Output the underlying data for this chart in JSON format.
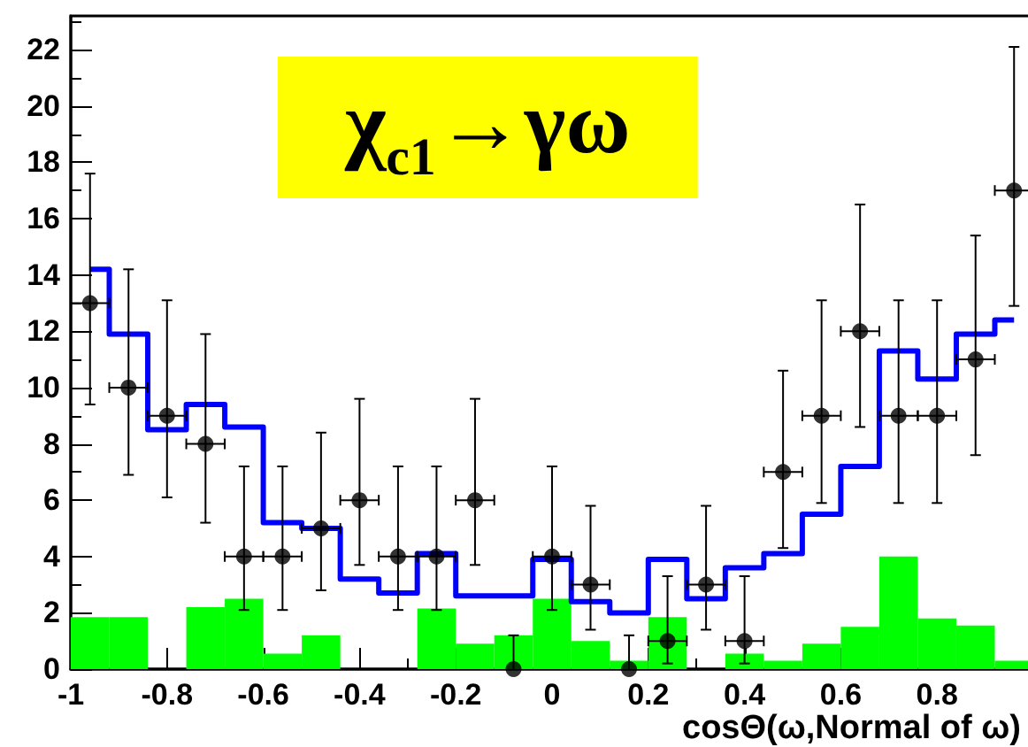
{
  "chart_data": {
    "type": "histogram",
    "title": "χ$_{c1}$→γω",
    "xlabel": "cosΘ(ω,Normal of ω)",
    "bins": [
      -1,
      -0.92,
      -0.84,
      -0.76,
      -0.68,
      -0.6,
      -0.52,
      -0.44,
      -0.36,
      -0.28,
      -0.2,
      -0.12,
      -0.04,
      0.04,
      0.12,
      0.2,
      0.28,
      0.36,
      0.44,
      0.52,
      0.6,
      0.68,
      0.76,
      0.84,
      0.92,
      1
    ],
    "series": [
      {
        "color": "#00ff00",
        "values": [
          1.85,
          1.85,
          0,
          2.2,
          2.5,
          0.55,
          1.2,
          0,
          0,
          2.15,
          0.9,
          1.2,
          2.5,
          1.0,
          0.3,
          1.85,
          0,
          0.55,
          0.3,
          0.9,
          1.5,
          4.0,
          1.8,
          1.55,
          0.3
        ]
      },
      {
        "type": "step",
        "marker": "none",
        "color": "#0000ff",
        "x": [
          -0.96,
          -0.88,
          -0.8,
          -0.72,
          -0.64,
          -0.56,
          -0.48,
          -0.4,
          -0.32,
          -0.24,
          -0.16,
          -0.08,
          0,
          0.08,
          0.16,
          0.24,
          0.32,
          0.4,
          0.48,
          0.56,
          0.64,
          0.72,
          0.8,
          0.88,
          0.96
        ],
        "values": [
          14.2,
          11.9,
          8.5,
          9.4,
          8.6,
          5.2,
          5.0,
          3.2,
          2.7,
          4.1,
          2.6,
          2.6,
          3.9,
          2.4,
          2.0,
          3.9,
          2.5,
          3.6,
          4.1,
          5.5,
          7.2,
          11.3,
          10.3,
          11.9,
          12.4
        ]
      },
      {
        "type": "scatter",
        "color": "#000000",
        "x": [
          -0.96,
          -0.88,
          -0.8,
          -0.72,
          -0.64,
          -0.56,
          -0.48,
          -0.4,
          -0.32,
          -0.24,
          -0.16,
          -0.08,
          0,
          0.08,
          0.16,
          0.24,
          0.32,
          0.4,
          0.48,
          0.56,
          0.64,
          0.72,
          0.8,
          0.88,
          0.96
        ],
        "values": [
          13,
          10,
          9,
          8,
          4,
          4,
          5,
          6,
          4,
          4,
          6,
          0,
          4,
          3,
          0,
          1,
          3,
          1,
          7,
          9,
          12,
          9,
          9,
          11,
          17
        ],
        "errors": [
          [
            9.4,
            17.6
          ],
          [
            6.9,
            14.2
          ],
          [
            6.1,
            13.1
          ],
          [
            5.2,
            11.9
          ],
          [
            2.1,
            7.2
          ],
          [
            2.1,
            7.2
          ],
          [
            2.8,
            8.4
          ],
          [
            3.7,
            9.6
          ],
          [
            2.1,
            7.2
          ],
          [
            2.1,
            7.2
          ],
          [
            3.7,
            9.6
          ],
          [
            0,
            1.2
          ],
          [
            2.1,
            7.2
          ],
          [
            1.4,
            5.8
          ],
          [
            0,
            1.2
          ],
          [
            0.2,
            3.3
          ],
          [
            1.4,
            5.8
          ],
          [
            0.2,
            3.3
          ],
          [
            4.3,
            10.6
          ],
          [
            5.9,
            13.1
          ],
          [
            8.6,
            16.5
          ],
          [
            5.9,
            13.1
          ],
          [
            5.9,
            13.1
          ],
          [
            7.6,
            15.4
          ],
          [
            12.9,
            22.1
          ]
        ],
        "xerrors": [
          0.04,
          0.04,
          0.04,
          0.04,
          0.04,
          0.04,
          0.04,
          0.04,
          0.04,
          0.04,
          0.04,
          null,
          0.04,
          0.04,
          null,
          0.04,
          0.04,
          0.04,
          0.04,
          0.04,
          0.04,
          0.04,
          0.04,
          0.04,
          0.04
        ]
      }
    ],
    "xlim": [
      -1,
      1
    ],
    "xticks": [
      -1,
      -0.8,
      -0.6,
      -0.4,
      -0.2,
      0,
      0.2,
      0.4,
      0.6,
      0.8
    ],
    "ylim": [
      0,
      23.2
    ],
    "yticks": [
      0,
      2,
      4,
      6,
      8,
      10,
      12,
      14,
      16,
      18,
      20,
      22
    ],
    "marker": "circle",
    "grid": false
  }
}
